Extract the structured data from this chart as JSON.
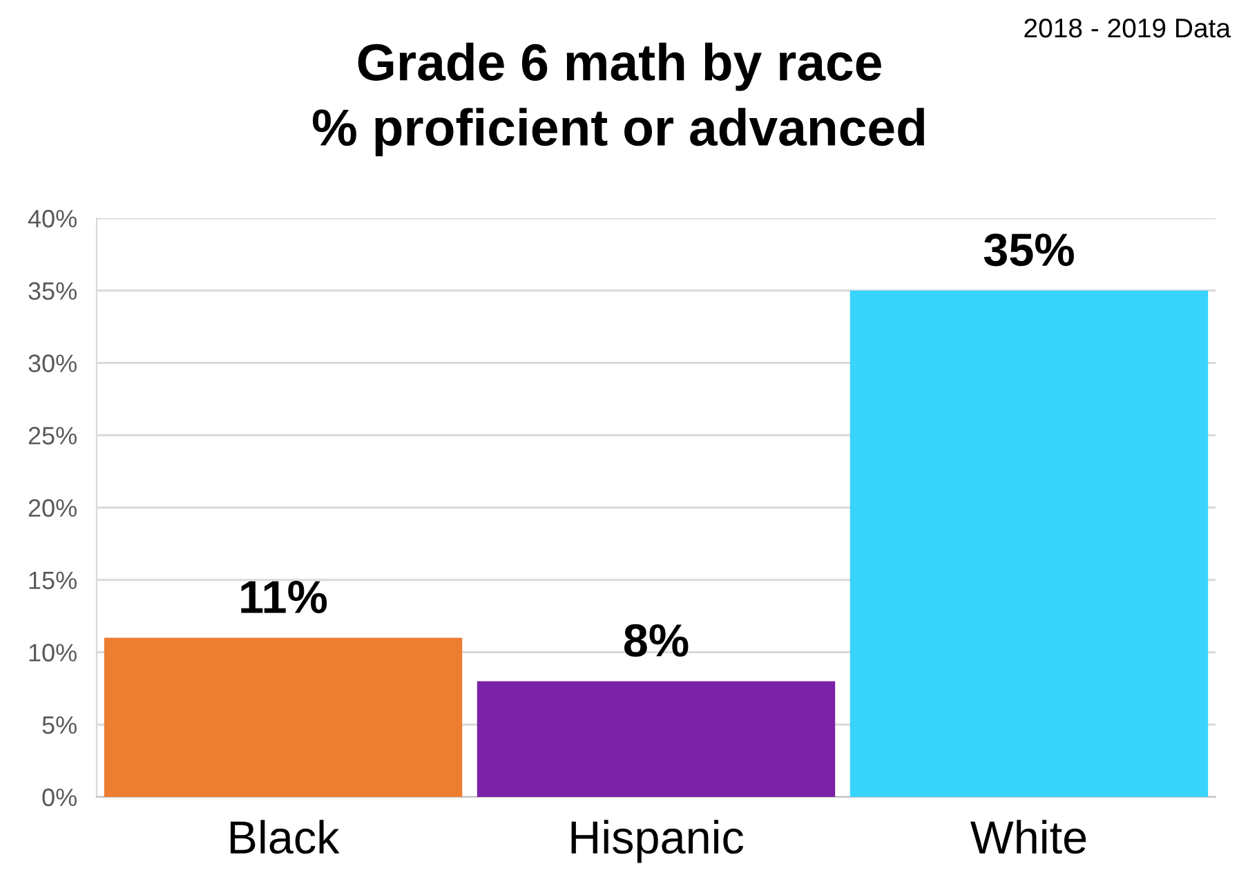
{
  "chart_data": {
    "type": "bar",
    "title": "Grade 6 math by race\n% proficient or advanced",
    "categories": [
      "Black",
      "Hispanic",
      "White"
    ],
    "values": [
      11,
      8,
      35
    ],
    "colors": [
      "#ed7d31",
      "#7b22a8",
      "#38d4fc"
    ],
    "value_labels": [
      "11%",
      "8%",
      "35%"
    ],
    "ylim": [
      0,
      40
    ],
    "yticks": [
      {
        "value": 0,
        "label": "0%"
      },
      {
        "value": 5,
        "label": "5%"
      },
      {
        "value": 10,
        "label": "10%"
      },
      {
        "value": 15,
        "label": "15%"
      },
      {
        "value": 20,
        "label": "20%"
      },
      {
        "value": 25,
        "label": "25%"
      },
      {
        "value": 30,
        "label": "30%"
      },
      {
        "value": 35,
        "label": "35%"
      },
      {
        "value": 40,
        "label": "40%"
      }
    ],
    "grid": "y",
    "annotations": [
      "2018 - 2019 Data"
    ]
  }
}
